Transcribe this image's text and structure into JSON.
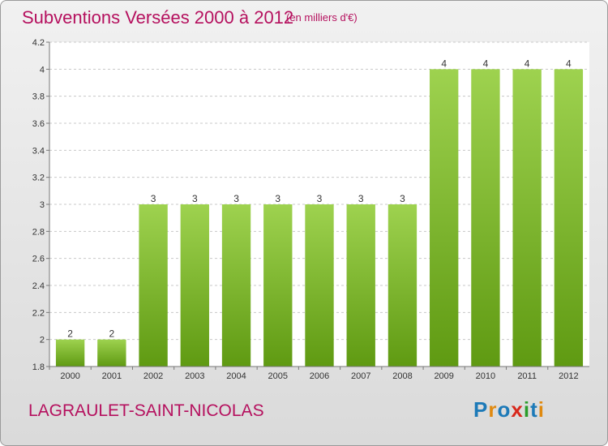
{
  "header": {
    "title": "Subventions Versées 2000 à 2012",
    "unit": "(en milliers d'€)"
  },
  "footer": {
    "commune": "LAGRAULET-SAINT-NICOLAS",
    "logo": [
      "P",
      "r",
      "o",
      "x",
      "i",
      "t",
      "i"
    ],
    "logo_colors": [
      "#1d7ab8",
      "#e08a10",
      "#1d7ab8",
      "#d8281c",
      "#2a9c2a",
      "#1d7ab8",
      "#e08a10"
    ]
  },
  "colors": {
    "title": "#b5105e",
    "bar_light": "#9ed24f",
    "bar_dark": "#5f9a12",
    "grid": "#c8c8c8"
  },
  "chart_data": {
    "type": "bar",
    "categories": [
      "2000",
      "2001",
      "2002",
      "2003",
      "2004",
      "2005",
      "2006",
      "2007",
      "2008",
      "2009",
      "2010",
      "2011",
      "2012"
    ],
    "values": [
      2,
      2,
      3,
      3,
      3,
      3,
      3,
      3,
      3,
      4,
      4,
      4,
      4
    ],
    "bar_labels": [
      "2",
      "2",
      "3",
      "3",
      "3",
      "3",
      "3",
      "3",
      "3",
      "4",
      "4",
      "4",
      "4"
    ],
    "yticks": [
      "1.8",
      "2",
      "2.2",
      "2.4",
      "2.6",
      "2.8",
      "3",
      "3.2",
      "3.4",
      "3.6",
      "3.8",
      "4",
      "4.2"
    ],
    "ytick_values": [
      1.8,
      2.0,
      2.2,
      2.4,
      2.6,
      2.8,
      3.0,
      3.2,
      3.4,
      3.6,
      3.8,
      4.0,
      4.2
    ],
    "ylim": [
      1.8,
      4.2
    ],
    "grid": true,
    "title": "Subventions Versées 2000 à 2012",
    "xlabel": "",
    "ylabel": ""
  }
}
